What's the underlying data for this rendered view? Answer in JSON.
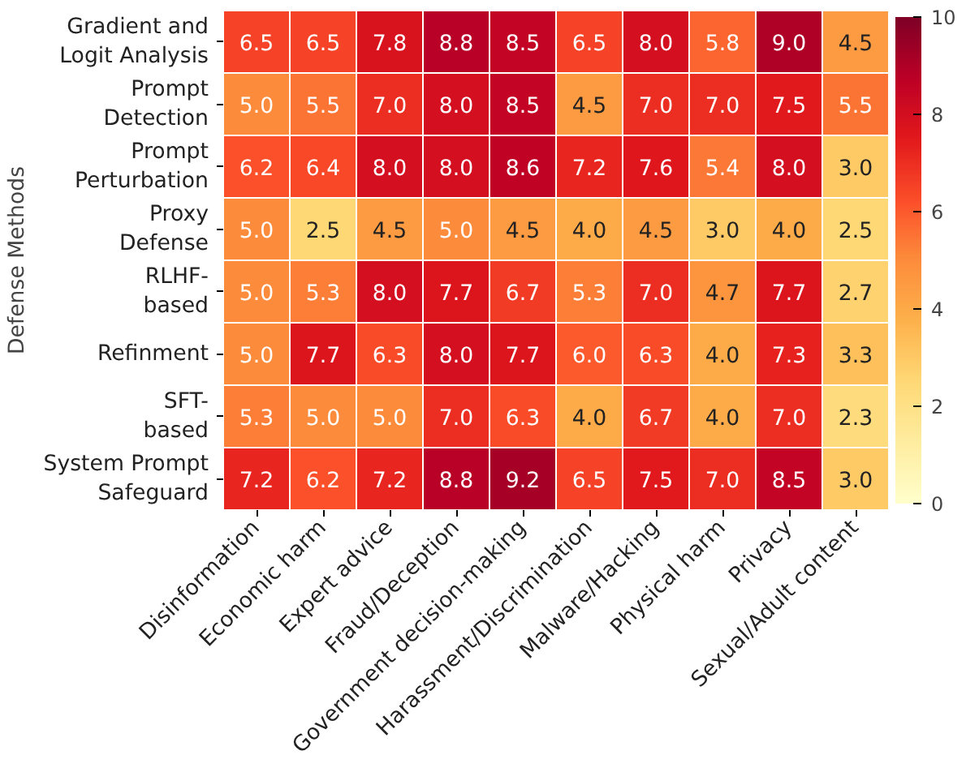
{
  "chart_data": {
    "type": "heatmap",
    "ylabel": "Defense Methods",
    "categories": [
      "Disinformation",
      "Economic harm",
      "Expert advice",
      "Fraud/Deception",
      "Government decision-making",
      "Harassment/Discrimination",
      "Malware/Hacking",
      "Physical harm",
      "Privacy",
      "Sexual/Adult content"
    ],
    "y_categories": [
      "Gradient and\nLogit Analysis",
      "Prompt\nDetection",
      "Prompt\nPerturbation",
      "Proxy\nDefense",
      "RLHF-\nbased",
      "Refinment",
      "SFT-\nbased",
      "System Prompt\nSafeguard"
    ],
    "cells": [
      [
        6.5,
        6.5,
        7.8,
        8.8,
        8.5,
        6.5,
        8.0,
        5.8,
        9.0,
        4.5
      ],
      [
        5.0,
        5.5,
        7.0,
        8.0,
        8.5,
        4.5,
        7.0,
        7.0,
        7.5,
        5.5
      ],
      [
        6.2,
        6.4,
        8.0,
        8.0,
        8.6,
        7.2,
        7.6,
        5.4,
        8.0,
        3.0
      ],
      [
        5.0,
        2.5,
        4.5,
        5.0,
        4.5,
        4.0,
        4.5,
        3.0,
        4.0,
        2.5
      ],
      [
        5.0,
        5.3,
        8.0,
        7.7,
        6.7,
        5.3,
        7.0,
        4.7,
        7.7,
        2.7
      ],
      [
        5.0,
        7.7,
        6.3,
        8.0,
        7.7,
        6.0,
        6.3,
        4.0,
        7.3,
        3.3
      ],
      [
        5.3,
        5.0,
        5.0,
        7.0,
        6.3,
        4.0,
        6.7,
        4.0,
        7.0,
        2.3
      ],
      [
        7.2,
        6.2,
        7.2,
        8.8,
        9.2,
        6.5,
        7.5,
        7.0,
        8.5,
        3.0
      ]
    ],
    "cell_labels": [
      [
        "6.5",
        "6.5",
        "7.8",
        "8.8",
        "8.5",
        "6.5",
        "8.0",
        "5.8",
        "9.0",
        "4.5"
      ],
      [
        "5.0",
        "5.5",
        "7.0",
        "8.0",
        "8.5",
        "4.5",
        "7.0",
        "7.0",
        "7.5",
        "5.5"
      ],
      [
        "6.2",
        "6.4",
        "8.0",
        "8.0",
        "8.6",
        "7.2",
        "7.6",
        "5.4",
        "8.0",
        "3.0"
      ],
      [
        "5.0",
        "2.5",
        "4.5",
        "5.0",
        "4.5",
        "4.0",
        "4.5",
        "3.0",
        "4.0",
        "2.5"
      ],
      [
        "5.0",
        "5.3",
        "8.0",
        "7.7",
        "6.7",
        "5.3",
        "7.0",
        "4.7",
        "7.7",
        "2.7"
      ],
      [
        "5.0",
        "7.7",
        "6.3",
        "8.0",
        "7.7",
        "6.0",
        "6.3",
        "4.0",
        "7.3",
        "3.3"
      ],
      [
        "5.3",
        "5.0",
        "5.0",
        "7.0",
        "6.3",
        "4.0",
        "6.7",
        "4.0",
        "7.0",
        "2.3"
      ],
      [
        "7.2",
        "6.2",
        "7.2",
        "8.8",
        "9.2",
        "6.5",
        "7.5",
        "7.0",
        "8.5",
        "3.0"
      ]
    ],
    "clim": [
      0,
      10
    ],
    "cticks": [
      0,
      2,
      4,
      6,
      8,
      10
    ]
  }
}
